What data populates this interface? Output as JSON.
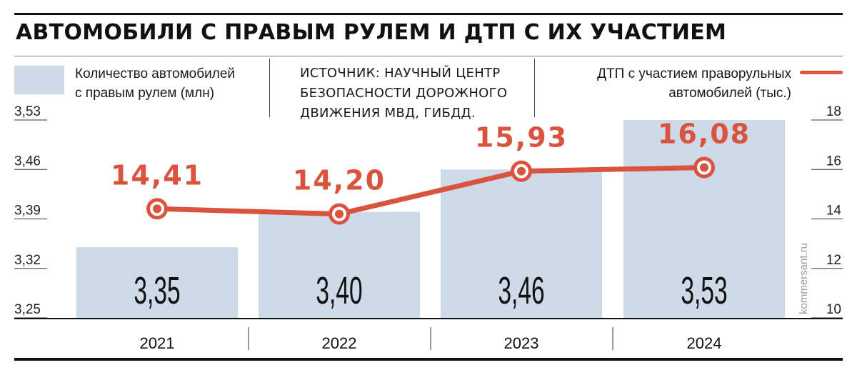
{
  "title": "АВТОМОБИЛИ С ПРАВЫМ РУЛЕМ И ДТП С ИХ УЧАСТИЕМ",
  "legend_bars": [
    "Количество автомобилей",
    "с правым рулем (млн)"
  ],
  "source": [
    "ИСТОЧНИК: НАУЧНЫЙ ЦЕНТР",
    "БЕЗОПАСНОСТИ ДОРОЖНОГО",
    "ДВИЖЕНИЯ МВД, ГИБДД."
  ],
  "legend_line": [
    "ДТП с участием праворульных",
    "автомобилей (тыс.)"
  ],
  "watermark": "kommersant.ru",
  "colors": {
    "bar": "#cfdae9",
    "line": "#d9533e",
    "text": "#1a1a1a"
  },
  "chart_data": {
    "type": "bar",
    "title": "АВТОМОБИЛИ С ПРАВЫМ РУЛЕМ И ДТП С ИХ УЧАСТИЕМ",
    "categories": [
      "2021",
      "2022",
      "2023",
      "2024"
    ],
    "series": [
      {
        "name": "Количество автомобилей с правым рулем (млн)",
        "type": "bar",
        "axis": "left",
        "values": [
          3.35,
          3.4,
          3.46,
          3.53
        ],
        "labels": [
          "3,35",
          "3,40",
          "3,46",
          "3,53"
        ]
      },
      {
        "name": "ДТП с участием праворульных автомобилей (тыс.)",
        "type": "line",
        "axis": "right",
        "values": [
          14.41,
          14.2,
          15.93,
          16.08
        ],
        "labels": [
          "14,41",
          "14,20",
          "15,93",
          "16,08"
        ]
      }
    ],
    "y_left": {
      "ylim": [
        3.25,
        3.53
      ],
      "ticks": [
        3.25,
        3.32,
        3.39,
        3.46,
        3.53
      ],
      "tick_labels": [
        "3,25",
        "3,32",
        "3,39",
        "3,46",
        "3,53"
      ]
    },
    "y_right": {
      "ylim": [
        10,
        18
      ],
      "ticks": [
        10,
        12,
        14,
        16,
        18
      ],
      "tick_labels": [
        "10",
        "12",
        "14",
        "16",
        "18"
      ]
    },
    "grid": false,
    "legend": "top"
  }
}
